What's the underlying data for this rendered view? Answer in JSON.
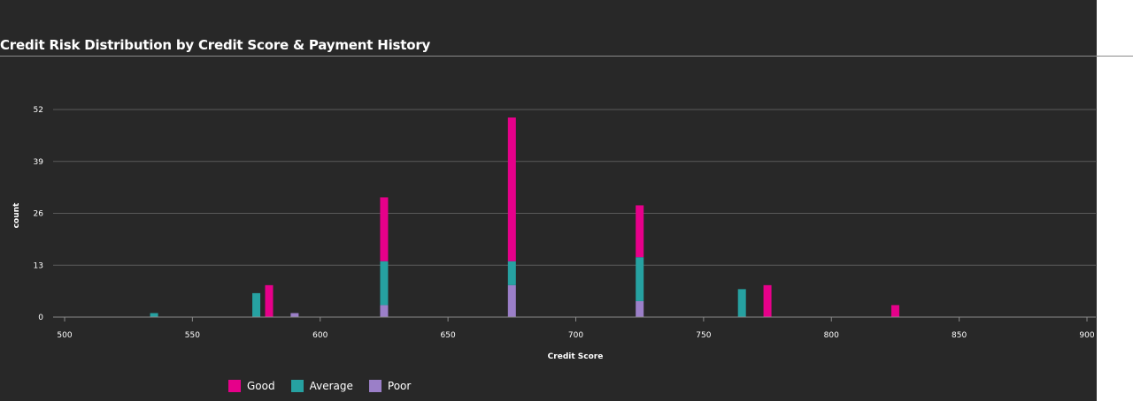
{
  "chart_data": {
    "type": "bar",
    "stacked": true,
    "title": "Credit Risk Distribution by Credit Score & Payment History",
    "xlabel": "Credit Score",
    "ylabel": "count",
    "xlim": [
      500,
      900
    ],
    "ylim": [
      0,
      52
    ],
    "x_ticks": [
      500,
      550,
      600,
      650,
      700,
      750,
      800,
      850,
      900
    ],
    "y_ticks": [
      0,
      13,
      26,
      39,
      52
    ],
    "grid": true,
    "legend_position": "bottom-left",
    "series": [
      {
        "name": "Good",
        "color": "#e6008a",
        "points": [
          {
            "x": 580,
            "y": 8
          },
          {
            "x": 625,
            "y": 16
          },
          {
            "x": 675,
            "y": 36
          },
          {
            "x": 725,
            "y": 13
          },
          {
            "x": 775,
            "y": 8
          },
          {
            "x": 825,
            "y": 3
          }
        ]
      },
      {
        "name": "Average",
        "color": "#26a1a1",
        "points": [
          {
            "x": 535,
            "y": 1
          },
          {
            "x": 575,
            "y": 6
          },
          {
            "x": 625,
            "y": 11
          },
          {
            "x": 675,
            "y": 6
          },
          {
            "x": 725,
            "y": 11
          },
          {
            "x": 765,
            "y": 7
          }
        ]
      },
      {
        "name": "Poor",
        "color": "#9b7fc8",
        "points": [
          {
            "x": 590,
            "y": 1
          },
          {
            "x": 625,
            "y": 3
          },
          {
            "x": 675,
            "y": 8
          },
          {
            "x": 725,
            "y": 4
          }
        ]
      }
    ]
  }
}
